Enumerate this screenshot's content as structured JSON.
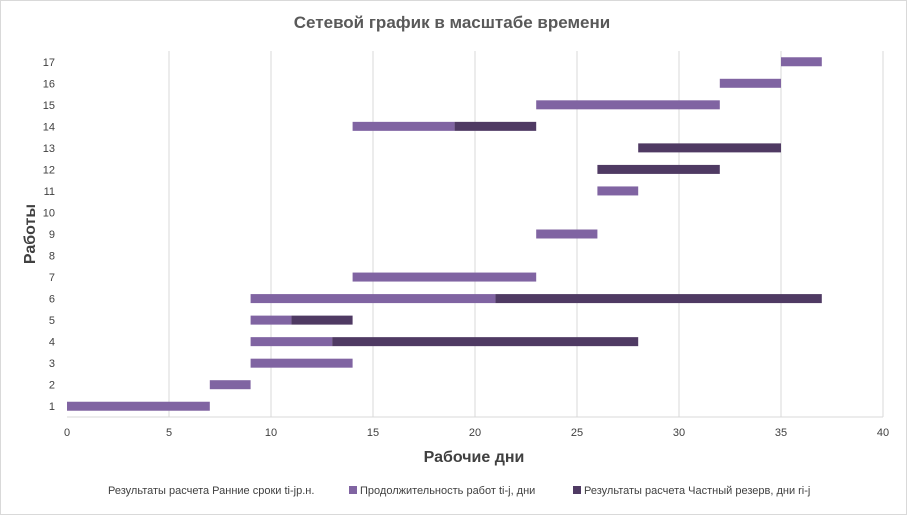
{
  "chart_data": {
    "type": "bar",
    "orientation": "horizontal",
    "stacked": true,
    "title": "Сетевой график в масштабе времени",
    "xlabel": "Рабочие дни",
    "ylabel": "Работы",
    "xlim": [
      0,
      40
    ],
    "xticks": [
      "0",
      "5",
      "10",
      "15",
      "20",
      "25",
      "30",
      "35",
      "40"
    ],
    "categories": [
      "1",
      "2",
      "3",
      "4",
      "5",
      "6",
      "7",
      "8",
      "9",
      "10",
      "11",
      "12",
      "13",
      "14",
      "15",
      "16",
      "17"
    ],
    "grid": "vertical",
    "legend_position": "bottom",
    "series": [
      {
        "name": "Результаты расчета Ранние сроки ti-jр.н.",
        "color": "none",
        "values": [
          0,
          7,
          9,
          9,
          9,
          9,
          14,
          0,
          23,
          0,
          26,
          26,
          28,
          14,
          23,
          32,
          35
        ]
      },
      {
        "name": "Продолжительность работ ti-j, дни",
        "color": "#8064a2",
        "values": [
          7,
          2,
          5,
          4,
          2,
          12,
          9,
          0,
          3,
          0,
          2,
          0,
          0,
          5,
          9,
          3,
          2
        ]
      },
      {
        "name": "Результаты расчета Частный резерв, дни  ri-j",
        "color": "#4f3a63",
        "values": [
          0,
          0,
          0,
          15,
          3,
          16,
          0,
          0,
          0,
          0,
          0,
          6,
          7,
          4,
          0,
          0,
          0
        ]
      }
    ]
  }
}
